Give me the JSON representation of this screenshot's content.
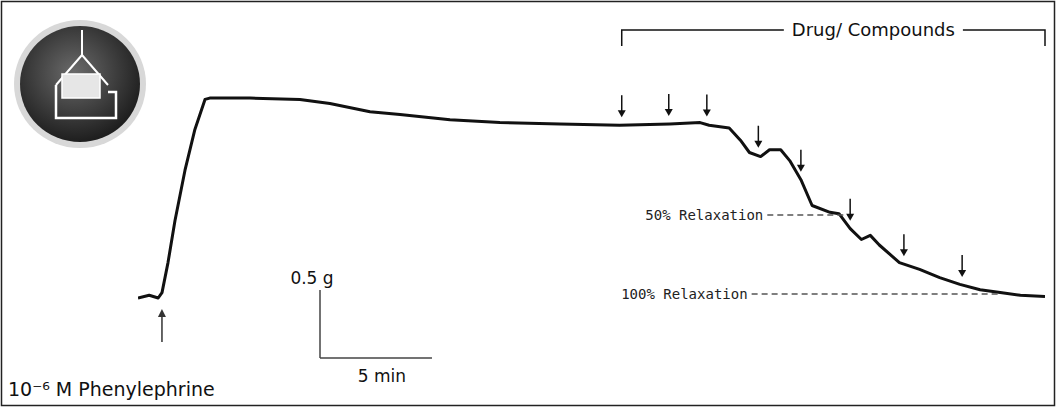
{
  "chart_data": {
    "type": "line",
    "x": [
      0,
      0.5,
      0.9,
      1.07,
      1.34,
      1.65,
      2.1,
      2.54,
      2.99,
      3.2,
      5.0,
      7.23,
      8.57,
      10.36,
      11.7,
      13.93,
      16.16,
      18.84,
      21.5,
      23.75,
      25.1,
      25.5,
      26.4,
      26.9,
      27.3,
      27.8,
      28.2,
      28.7,
      29.1,
      29.6,
      30.1,
      30.9,
      31.3,
      31.8,
      32.3,
      32.7,
      33.1,
      34.0,
      34.9,
      35.8,
      36.7,
      37.6,
      38.5,
      39.4,
      40.5
    ],
    "series": [
      {
        "color": "#111111",
        "values": [
          0,
          0.02,
          0,
          0.04,
          0.26,
          0.57,
          0.94,
          1.24,
          1.46,
          1.47,
          1.47,
          1.46,
          1.43,
          1.37,
          1.35,
          1.31,
          1.29,
          1.28,
          1.27,
          1.28,
          1.29,
          1.27,
          1.25,
          1.16,
          1.07,
          1.04,
          1.09,
          1.09,
          1.01,
          0.87,
          0.68,
          0.63,
          0.62,
          0.51,
          0.43,
          0.46,
          0.39,
          0.26,
          0.21,
          0.15,
          0.1,
          0.06,
          0.04,
          0.02,
          0.01
        ]
      }
    ],
    "xlim": [
      0,
      40.5
    ],
    "ylim": [
      -0.2,
      1.6
    ],
    "tick_labels": false,
    "scale_bar": {
      "y": 0.5,
      "y_label": "0.5 g",
      "x": 5,
      "x_label": "5 min"
    },
    "stimulus": {
      "label": "10⁻⁶ M Phenylephrine",
      "x": 1.07
    },
    "drug_additions": {
      "label": "Drug/ Compounds",
      "x": [
        21.6,
        23.7,
        25.4,
        27.7,
        29.6,
        31.8,
        34.2,
        36.8
      ]
    },
    "reference_lines": [
      {
        "label": "50% Relaxation",
        "y": 0.61,
        "x": [
          28.1,
          31.8
        ]
      },
      {
        "label": "100% Relaxation",
        "y": 0.03,
        "x": [
          27.4,
          38.5
        ]
      }
    ]
  }
}
